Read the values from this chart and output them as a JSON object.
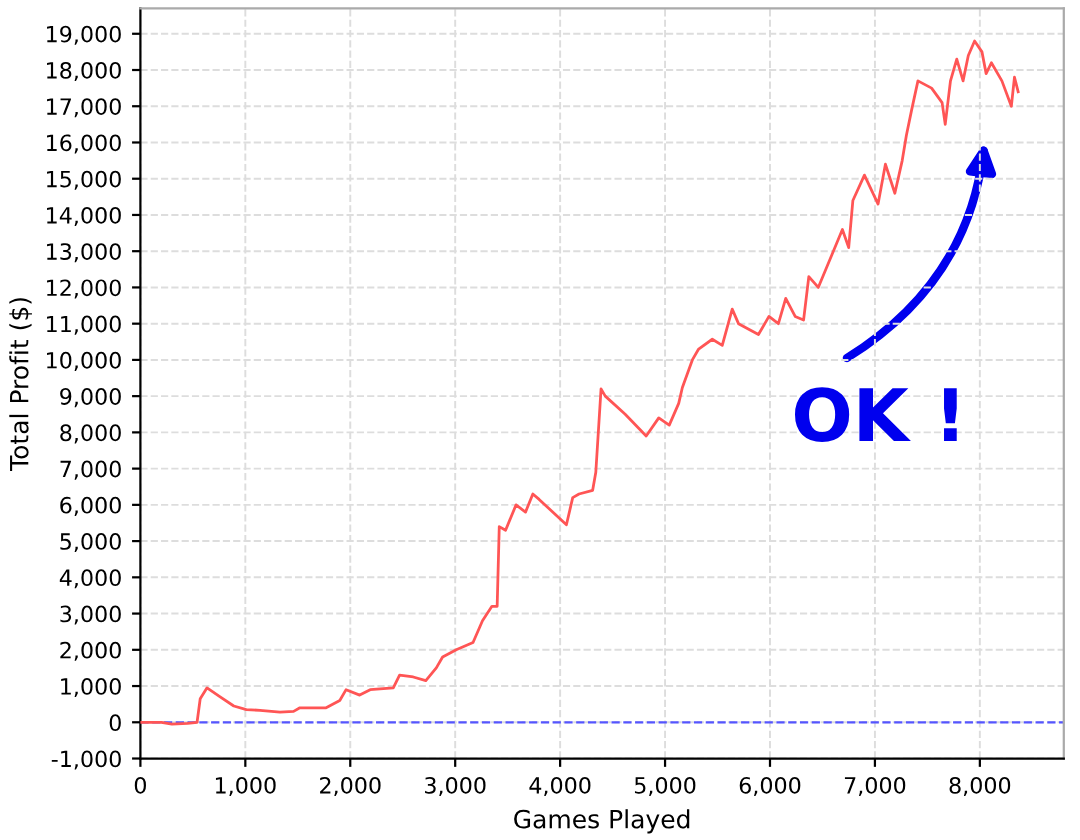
{
  "chart_data": {
    "type": "line",
    "xlabel": "Games Played",
    "ylabel": "Total Profit ($)",
    "series": [
      {
        "color": "#ff5555",
        "x": [
          0,
          200,
          300,
          450,
          540,
          570,
          635,
          760,
          890,
          1010,
          1140,
          1330,
          1460,
          1520,
          1770,
          1900,
          1960,
          2090,
          2190,
          2410,
          2470,
          2600,
          2720,
          2820,
          2880,
          3010,
          3170,
          3260,
          3350,
          3400,
          3420,
          3480,
          3580,
          3670,
          3740,
          3800,
          4060,
          4120,
          4180,
          4310,
          4340,
          4390,
          4430,
          4620,
          4820,
          4940,
          5040,
          5130,
          5165,
          5260,
          5320,
          5450,
          5545,
          5640,
          5700,
          5890,
          5990,
          6080,
          6150,
          6240,
          6320,
          6370,
          6460,
          6590,
          6690,
          6750,
          6790,
          6900,
          7030,
          7100,
          7190,
          7260,
          7300,
          7350,
          7410,
          7540,
          7640,
          7670,
          7720,
          7780,
          7840,
          7890,
          7950,
          8020,
          8060,
          8110,
          8210,
          8300,
          8330,
          8365
        ],
        "values": [
          0,
          0,
          -50,
          -30,
          0,
          650,
          950,
          700,
          450,
          350,
          330,
          280,
          300,
          400,
          400,
          600,
          900,
          750,
          900,
          950,
          1300,
          1250,
          1150,
          1500,
          1800,
          2000,
          2200,
          2800,
          3200,
          3200,
          5400,
          5300,
          6000,
          5800,
          6300,
          6150,
          5450,
          6200,
          6300,
          6400,
          6900,
          9200,
          9000,
          8500,
          7900,
          8400,
          8200,
          8800,
          9240,
          10000,
          10300,
          10570,
          10400,
          11400,
          11000,
          10700,
          11200,
          11000,
          11700,
          11200,
          11100,
          12300,
          12000,
          12900,
          13600,
          13100,
          14400,
          15100,
          14300,
          15400,
          14600,
          15500,
          16200,
          16900,
          17700,
          17500,
          17100,
          16500,
          17700,
          18300,
          17700,
          18400,
          18800,
          18500,
          17900,
          18200,
          17700,
          17000,
          17800,
          17400
        ]
      }
    ],
    "xlim": [
      0,
      8800
    ],
    "xticks": [
      0,
      {
        "value": 1000,
        "label": "1,000"
      },
      {
        "value": 2000,
        "label": "2,000"
      },
      {
        "value": 3000,
        "label": "3,000"
      },
      {
        "value": 4000,
        "label": "4,000"
      },
      {
        "value": 5000,
        "label": "5,000"
      },
      {
        "value": 6000,
        "label": "6,000"
      },
      {
        "value": 7000,
        "label": "7,000"
      },
      {
        "value": 8000,
        "label": "8,000"
      }
    ],
    "ylim": [
      -1000,
      19700
    ],
    "yticks": [
      {
        "value": -1000,
        "label": "-1,000"
      },
      0,
      {
        "value": 1000,
        "label": "1,000"
      },
      {
        "value": 2000,
        "label": "2,000"
      },
      {
        "value": 3000,
        "label": "3,000"
      },
      {
        "value": 4000,
        "label": "4,000"
      },
      {
        "value": 5000,
        "label": "5,000"
      },
      {
        "value": 6000,
        "label": "6,000"
      },
      {
        "value": 7000,
        "label": "7,000"
      },
      {
        "value": 8000,
        "label": "8,000"
      },
      {
        "value": 9000,
        "label": "9,000"
      },
      {
        "value": 10000,
        "label": "10,000"
      },
      {
        "value": 11000,
        "label": "11,000"
      },
      {
        "value": 12000,
        "label": "12,000"
      },
      {
        "value": 13000,
        "label": "13,000"
      },
      {
        "value": 14000,
        "label": "14,000"
      },
      {
        "value": 15000,
        "label": "15,000"
      },
      {
        "value": 16000,
        "label": "16,000"
      },
      {
        "value": 17000,
        "label": "17,000"
      },
      {
        "value": 18000,
        "label": "18,000"
      },
      {
        "value": 19000,
        "label": "19,000"
      }
    ],
    "ref_lines": [
      {
        "axis": "y",
        "value": 0,
        "color": "#5555ff",
        "line_style": "dashed"
      }
    ],
    "annotations": [
      "OK !"
    ],
    "grid": true,
    "line_style": "solid",
    "marker": "none",
    "legend": false
  }
}
